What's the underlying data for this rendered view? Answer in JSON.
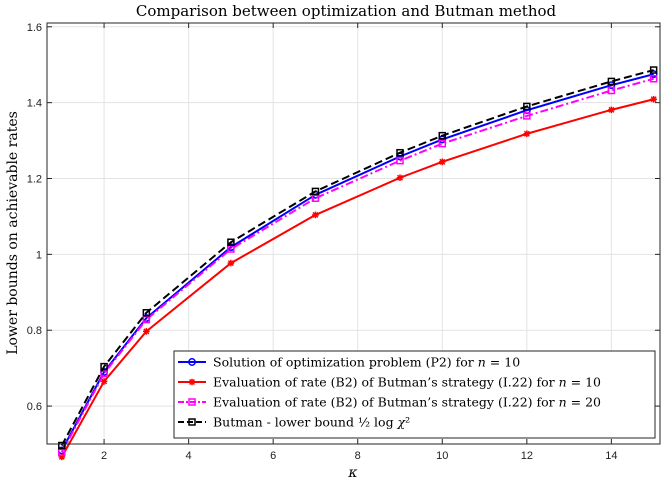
{
  "chart_data": {
    "type": "line",
    "title": "Comparison between optimization and Butman method",
    "xlabel": "κ",
    "ylabel": "Lower bounds on achievable rates",
    "xlim": [
      0.65,
      15.15
    ],
    "ylim": [
      0.5,
      1.61
    ],
    "xticks": [
      2,
      4,
      6,
      8,
      10,
      12,
      14
    ],
    "yticks": [
      0.6,
      0.8,
      1.0,
      1.2,
      1.4,
      1.6
    ],
    "xtick_labels": [
      "2",
      "4",
      "6",
      "8",
      "10",
      "12",
      "14"
    ],
    "ytick_labels": [
      "0.6",
      "0.8",
      "1",
      "1.2",
      "1.4",
      "1.6"
    ],
    "grid": true,
    "legend_position": "bottom-right",
    "x": [
      1,
      2,
      3,
      5,
      7,
      9,
      10,
      12,
      14,
      15
    ],
    "series": [
      {
        "name": "Solution of optimization problem (P2) for n = 10",
        "color": "#0000ff",
        "dash": "solid",
        "marker": "circle",
        "values": [
          0.483,
          0.69,
          0.832,
          1.019,
          1.157,
          1.258,
          1.303,
          1.38,
          1.446,
          1.475
        ]
      },
      {
        "name": "Evaluation of rate (B2) of Butman’s strategy (I.22) for n = 10",
        "color": "#ff0000",
        "dash": "solid",
        "marker": "asterisk",
        "values": [
          0.466,
          0.665,
          0.797,
          0.977,
          1.104,
          1.202,
          1.244,
          1.318,
          1.381,
          1.409
        ]
      },
      {
        "name": "Evaluation of rate (B2) of Butman’s strategy (I.22) for n = 20",
        "color": "#ff00ff",
        "dash": "dashdot",
        "marker": "square",
        "values": [
          0.478,
          0.686,
          0.828,
          1.014,
          1.148,
          1.247,
          1.292,
          1.365,
          1.432,
          1.463
        ]
      },
      {
        "name": "Butman - lower bound ½ log χ²",
        "color": "#000000",
        "dash": "dashed",
        "marker": "square",
        "values": [
          0.496,
          0.704,
          0.846,
          1.032,
          1.166,
          1.268,
          1.313,
          1.39,
          1.456,
          1.486
        ]
      }
    ],
    "legend_labels": [
      {
        "pre": "Solution of optimization problem (P2) for ",
        "var": "n",
        "post": " = 10"
      },
      {
        "pre": "Evaluation of rate (B2) of Butman’s strategy (I.22) for ",
        "var": "n",
        "post": " = 10"
      },
      {
        "pre": "Evaluation of rate (B2) of Butman’s strategy (I.22) for ",
        "var": "n",
        "post": " = 20"
      },
      {
        "pre": "Butman - lower bound ½ log ",
        "var": "χ",
        "post": "²"
      }
    ]
  }
}
